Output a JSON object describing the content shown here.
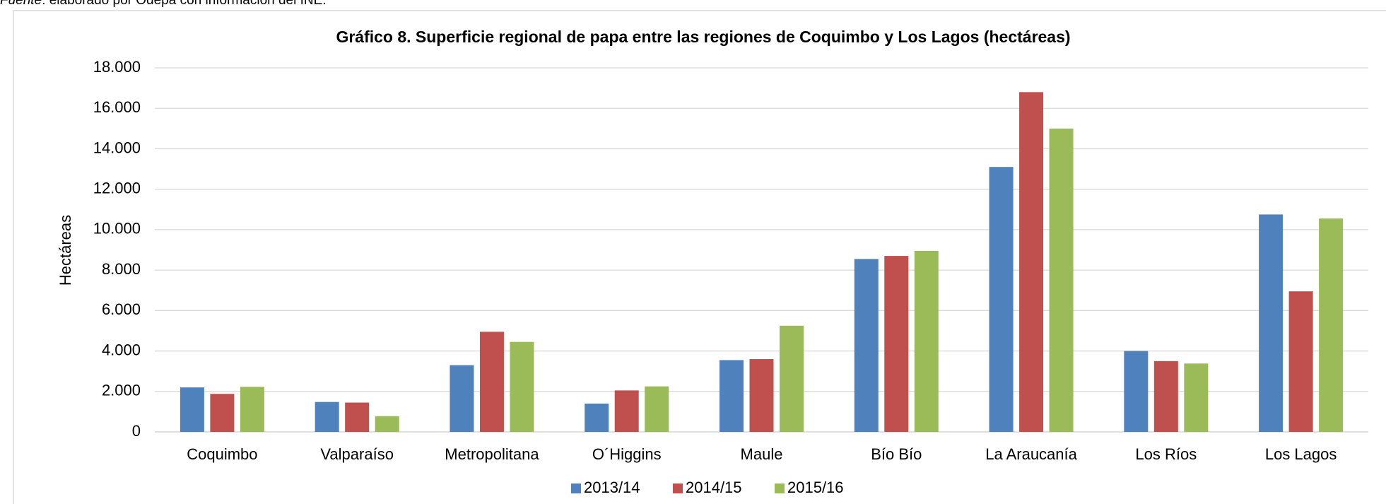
{
  "source_label": "Fuente",
  "source_text": ": elaborado por Odepa con información del INE.",
  "chart_data": {
    "type": "bar",
    "title": "Gráfico 8. Superficie regional de papa entre las regiones de Coquimbo y Los Lagos (hectáreas)",
    "y_label": "Hectáreas",
    "categories": [
      "Coquimbo",
      "Valparaíso",
      "Metropolitana",
      "O´Higgins",
      "Maule",
      "Bío Bío",
      "La Araucanía",
      "Los Ríos",
      "Los Lagos"
    ],
    "series": [
      {
        "name": "2013/14",
        "color": "#4f81bd",
        "values": [
          2200,
          1480,
          3300,
          1400,
          3550,
          8550,
          13100,
          4000,
          10750
        ]
      },
      {
        "name": "2014/15",
        "color": "#c0504d",
        "values": [
          1880,
          1450,
          4950,
          2050,
          3600,
          8700,
          16800,
          3500,
          6950
        ]
      },
      {
        "name": "2015/16",
        "color": "#9bbb59",
        "values": [
          2230,
          780,
          4450,
          2250,
          5250,
          8950,
          15000,
          3380,
          10550
        ]
      }
    ],
    "ylim": [
      0,
      18000
    ],
    "yticks": [
      0,
      {
        "value": 2000,
        "label": "2.000"
      },
      {
        "value": 4000,
        "label": "4.000"
      },
      {
        "value": 6000,
        "label": "6.000"
      },
      {
        "value": 8000,
        "label": "8.000"
      },
      {
        "value": 10000,
        "label": "10.000"
      },
      {
        "value": 12000,
        "label": "12.000"
      },
      {
        "value": 14000,
        "label": "14.000"
      },
      {
        "value": 16000,
        "label": "16.000"
      },
      {
        "value": 18000,
        "label": "18.000"
      }
    ],
    "grid": true,
    "legend": "bottom"
  }
}
